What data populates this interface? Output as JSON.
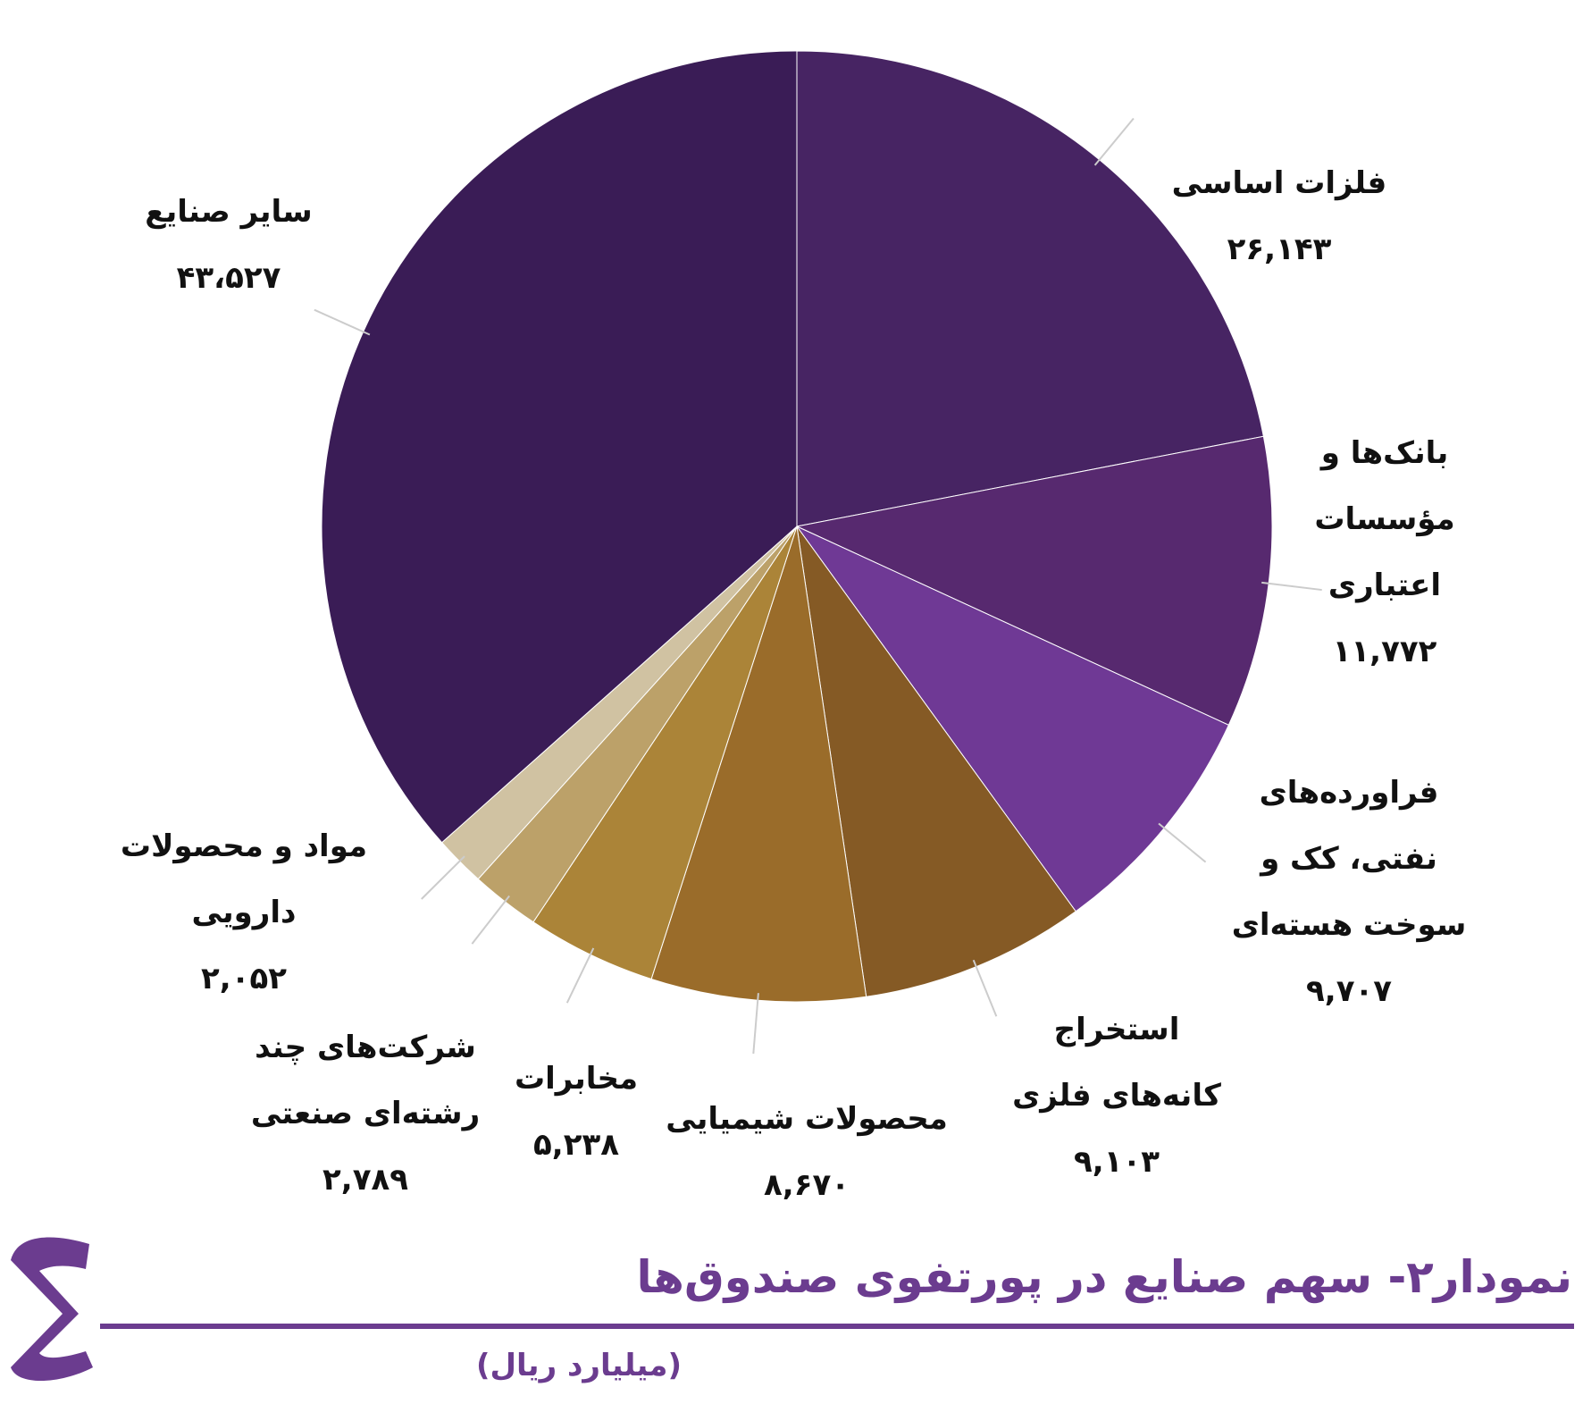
{
  "chart_data": {
    "type": "pie",
    "title": "نمودار۲- سهم صنایع در پورتفوی صندوق‌ها",
    "subtitle": "(میلیارد ریال)",
    "categories": [
      "فلزات اساسی",
      "بانک‌ها و مؤسسات اعتباری",
      "فراورده‌های نفتی، کک و سوخت هسته‌ای",
      "استخراج کانه‌های فلزی",
      "محصولات شیمیایی",
      "مخابرات",
      "شرکت‌های چند رشته‌ای صنعتی",
      "مواد و محصولات دارویی",
      "سایر صنایع"
    ],
    "values": [
      26143,
      11772,
      9707,
      9103,
      8670,
      5238,
      2789,
      2052,
      43527
    ],
    "value_labels": [
      "۲۶,۱۴۳",
      "۱۱,۷۷۲",
      "۹,۷۰۷",
      "۹,۱۰۳",
      "۸,۶۷۰",
      "۵,۲۳۸",
      "۲,۷۸۹",
      "۲,۰۵۲",
      "۴۳،۵۲۷"
    ],
    "colors": [
      "#472463",
      "#57296f",
      "#6f3995",
      "#855a25",
      "#9a6c2a",
      "#ab8438",
      "#bca169",
      "#d0c2a2",
      "#3a1c56"
    ]
  }
}
